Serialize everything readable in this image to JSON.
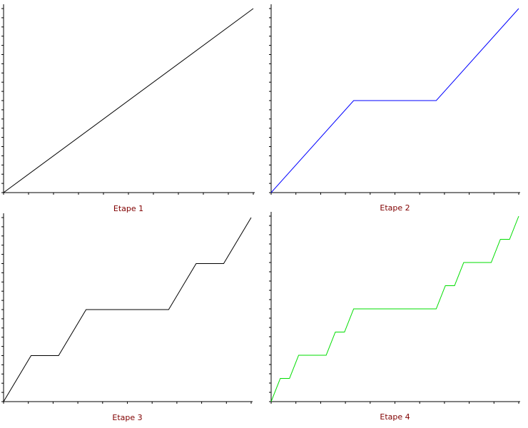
{
  "chart_data": [
    {
      "type": "line",
      "title": "Etape 1",
      "xlim": [
        0,
        1
      ],
      "ylim": [
        0,
        1
      ],
      "xticks": [
        0,
        0.1,
        0.2,
        0.3,
        0.4,
        0.5,
        0.6,
        0.7,
        0.8,
        0.9,
        1
      ],
      "yticks": [
        0,
        0.05,
        0.1,
        0.15,
        0.2,
        0.25,
        0.3,
        0.35,
        0.4,
        0.45,
        0.5,
        0.55,
        0.6,
        0.65,
        0.7,
        0.75,
        0.8,
        0.85,
        0.9,
        0.95,
        1
      ],
      "x": [
        0,
        1
      ],
      "values": [
        0,
        1
      ],
      "color": "#000000"
    },
    {
      "type": "line",
      "title": "Etape 2",
      "xlim": [
        0,
        1
      ],
      "ylim": [
        0,
        1
      ],
      "xticks": [
        0,
        0.1,
        0.2,
        0.3,
        0.4,
        0.5,
        0.6,
        0.7,
        0.8,
        0.9,
        1
      ],
      "yticks": [
        0,
        0.05,
        0.1,
        0.15,
        0.2,
        0.25,
        0.3,
        0.35,
        0.4,
        0.45,
        0.5,
        0.55,
        0.6,
        0.65,
        0.7,
        0.75,
        0.8,
        0.85,
        0.9,
        0.95,
        1
      ],
      "x": [
        0,
        0.3333,
        0.6667,
        1
      ],
      "values": [
        0,
        0.5,
        0.5,
        1
      ],
      "color": "#0000ff"
    },
    {
      "type": "line",
      "title": "Etape 3",
      "xlim": [
        0,
        1
      ],
      "ylim": [
        0,
        1
      ],
      "xticks": [
        0,
        0.1,
        0.2,
        0.3,
        0.4,
        0.5,
        0.6,
        0.7,
        0.8,
        0.9,
        1
      ],
      "yticks": [
        0,
        0.05,
        0.1,
        0.15,
        0.2,
        0.25,
        0.3,
        0.35,
        0.4,
        0.45,
        0.5,
        0.55,
        0.6,
        0.65,
        0.7,
        0.75,
        0.8,
        0.85,
        0.9,
        0.95,
        1
      ],
      "x": [
        0,
        0.1111,
        0.2222,
        0.3333,
        0.6667,
        0.7778,
        0.8889,
        1
      ],
      "values": [
        0,
        0.25,
        0.25,
        0.5,
        0.5,
        0.75,
        0.75,
        1
      ],
      "color": "#000000"
    },
    {
      "type": "line",
      "title": "Etape 4",
      "xlim": [
        0,
        1
      ],
      "ylim": [
        0,
        1
      ],
      "xticks": [
        0,
        0.1,
        0.2,
        0.3,
        0.4,
        0.5,
        0.6,
        0.7,
        0.8,
        0.9,
        1
      ],
      "yticks": [
        0,
        0.05,
        0.1,
        0.15,
        0.2,
        0.25,
        0.3,
        0.35,
        0.4,
        0.45,
        0.5,
        0.55,
        0.6,
        0.65,
        0.7,
        0.75,
        0.8,
        0.85,
        0.9,
        0.95,
        1
      ],
      "x": [
        0,
        0.037,
        0.0741,
        0.1111,
        0.2222,
        0.2593,
        0.2963,
        0.3333,
        0.6667,
        0.7037,
        0.7407,
        0.7778,
        0.8889,
        0.9259,
        0.963,
        1
      ],
      "values": [
        0,
        0.125,
        0.125,
        0.25,
        0.25,
        0.375,
        0.375,
        0.5,
        0.5,
        0.625,
        0.625,
        0.75,
        0.75,
        0.875,
        0.875,
        1
      ],
      "color": "#00dd00"
    }
  ]
}
